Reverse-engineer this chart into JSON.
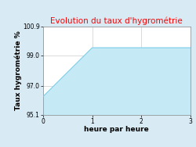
{
  "title": "Evolution du taux d'hygrométrie",
  "title_color": "#ff0000",
  "xlabel": "heure par heure",
  "ylabel": "Taux hygrométrie %",
  "x": [
    0,
    1,
    3
  ],
  "y": [
    96.3,
    99.5,
    99.5
  ],
  "ylim": [
    95.1,
    100.9
  ],
  "xlim": [
    0,
    3
  ],
  "yticks": [
    95.1,
    97.0,
    99.0,
    100.9
  ],
  "xticks": [
    0,
    1,
    2,
    3
  ],
  "line_color": "#7ecfea",
  "fill_color": "#c5e9f5",
  "bg_color": "#d8eaf4",
  "plot_bg_color": "#ffffff",
  "title_fontsize": 7.5,
  "label_fontsize": 6.5,
  "tick_fontsize": 5.5
}
